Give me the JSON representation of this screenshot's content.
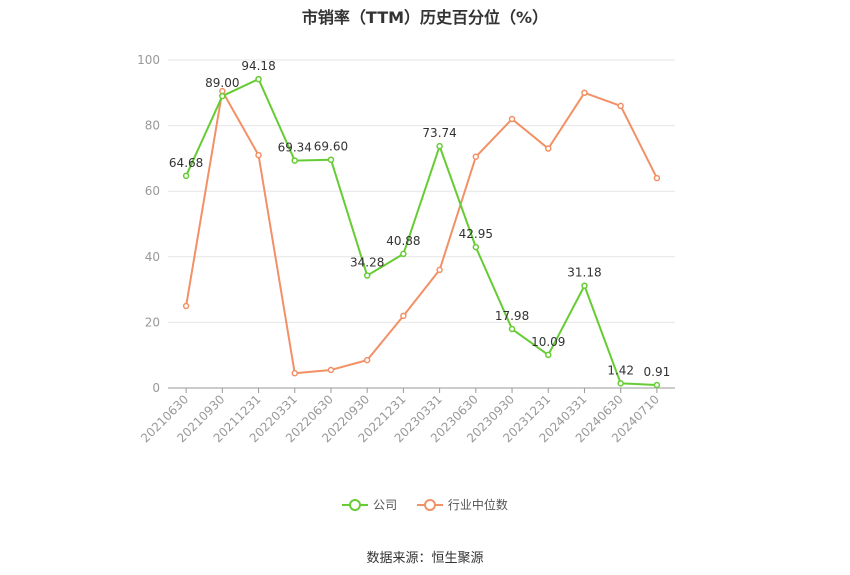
{
  "title": "市销率（TTM）历史百分位（%）",
  "source": "数据来源：恒生聚源",
  "colors": {
    "company": "#66cc33",
    "industry": "#f29066",
    "grid": "#e6e6e6",
    "axis": "#999999"
  },
  "chart_data": {
    "type": "line",
    "title": "市销率（TTM）历史百分位（%）",
    "xlabel": "",
    "ylabel": "",
    "ylim": [
      0,
      100
    ],
    "yticks": [
      0,
      20,
      40,
      60,
      80,
      100
    ],
    "grid": true,
    "legend_position": "bottom",
    "categories": [
      "20210630",
      "20210930",
      "20211231",
      "20220331",
      "20220630",
      "20220930",
      "20221231",
      "20230331",
      "20230630",
      "20230930",
      "20231231",
      "20240331",
      "20240630",
      "20240710"
    ],
    "series": [
      {
        "name": "公司",
        "color": "#66cc33",
        "values": [
          64.68,
          89.0,
          94.18,
          69.34,
          69.6,
          34.28,
          40.88,
          73.74,
          42.95,
          17.98,
          10.09,
          31.18,
          1.42,
          0.91
        ],
        "labels": [
          "64.68",
          "89.00",
          "94.18",
          "69.34",
          "69.60",
          "34.28",
          "40.88",
          "73.74",
          "42.95",
          "17.98",
          "10.09",
          "31.18",
          "1.42",
          "0.91"
        ]
      },
      {
        "name": "行业中位数",
        "color": "#f29066",
        "values": [
          25,
          90.5,
          71,
          4.5,
          5.5,
          8.5,
          22,
          36,
          70.5,
          82,
          73,
          90,
          86,
          64
        ]
      }
    ]
  }
}
